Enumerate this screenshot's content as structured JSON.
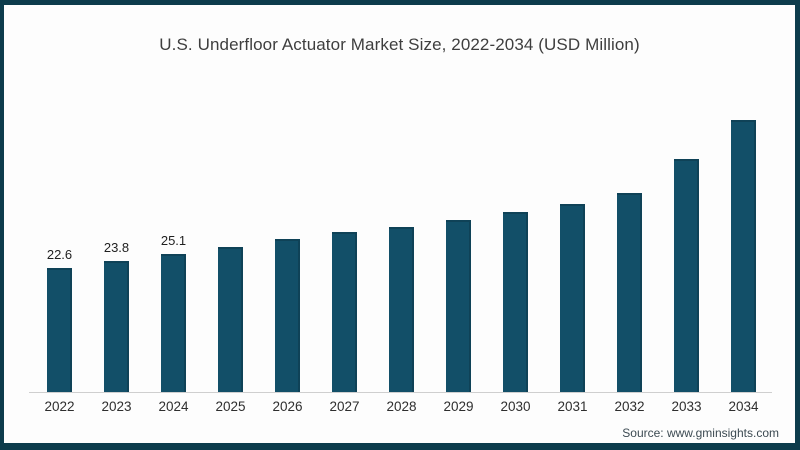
{
  "colors": {
    "bar": "#124f68",
    "frame": "#0d3c4c",
    "axis": "#cfcfcf"
  },
  "header": {
    "title": "U.S. Underfloor Actuator Market Size, 2022-2034 (USD Million)"
  },
  "footer": {
    "source": "Source: www.gminsights.com"
  },
  "chart_data": {
    "type": "bar",
    "title": "U.S. Underfloor Actuator Market Size, 2022-2034 (USD Million)",
    "categories": [
      "2022",
      "2023",
      "2024",
      "2025",
      "2026",
      "2027",
      "2028",
      "2029",
      "2030",
      "2031",
      "2032",
      "2033",
      "2034"
    ],
    "values": [
      22.6,
      23.8,
      25.1,
      26.3,
      27.9,
      29.1,
      30.0,
      31.2,
      32.8,
      34.2,
      36.1,
      42.3,
      49.5
    ],
    "data_labels": [
      "22.6",
      "23.8",
      "25.1",
      "",
      "",
      "",
      "",
      "",
      "",
      "",
      "",
      "",
      ""
    ],
    "xlabel": "",
    "ylabel": "",
    "ylim": [
      0,
      52
    ],
    "grid": false,
    "legend": false,
    "bar_color": "#124f68",
    "source": "Source: www.gminsights.com"
  }
}
